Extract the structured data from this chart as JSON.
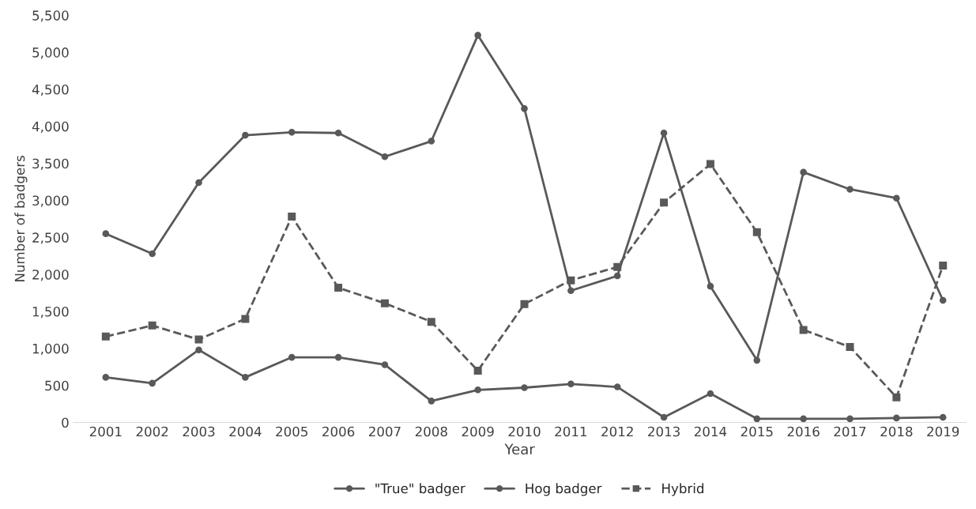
{
  "chart_data": {
    "type": "line",
    "xlabel": "Year",
    "ylabel": "Number of badgers",
    "categories": [
      "2001",
      "2002",
      "2003",
      "2004",
      "2005",
      "2006",
      "2007",
      "2008",
      "2009",
      "2010",
      "2011",
      "2012",
      "2013",
      "2014",
      "2015",
      "2016",
      "2017",
      "2018",
      "2019"
    ],
    "series": [
      {
        "name": "\"True\" badger",
        "color": "#595959",
        "marker": "circle",
        "line_style": "solid",
        "values": [
          2550,
          2280,
          3240,
          3880,
          3920,
          3910,
          3590,
          3800,
          5230,
          4240,
          1780,
          1980,
          3910,
          1840,
          840,
          3380,
          3150,
          3030,
          1650
        ]
      },
      {
        "name": "Hog badger",
        "color": "#595959",
        "marker": "circle",
        "line_style": "solid",
        "values": [
          610,
          530,
          980,
          610,
          880,
          880,
          780,
          290,
          440,
          470,
          520,
          480,
          70,
          390,
          50,
          50,
          50,
          60,
          70
        ]
      },
      {
        "name": "Hybrid",
        "color": "#595959",
        "marker": "square",
        "line_style": "dashed",
        "values": [
          1160,
          1310,
          1120,
          1400,
          2780,
          1820,
          1610,
          1360,
          700,
          1600,
          1920,
          2100,
          2970,
          3490,
          2570,
          1250,
          1020,
          340,
          2120
        ]
      }
    ],
    "ylim": [
      0,
      5500
    ],
    "yticks": [
      {
        "value": 0,
        "label": "0"
      },
      {
        "value": 500,
        "label": "500"
      },
      {
        "value": 1000,
        "label": "1,000"
      },
      {
        "value": 1500,
        "label": "1,500"
      },
      {
        "value": 2000,
        "label": "2,000"
      },
      {
        "value": 2500,
        "label": "2,500"
      },
      {
        "value": 3000,
        "label": "3,000"
      },
      {
        "value": 3500,
        "label": "3,500"
      },
      {
        "value": 4000,
        "label": "4,000"
      },
      {
        "value": 4500,
        "label": "4,500"
      },
      {
        "value": 5000,
        "label": "5,000"
      },
      {
        "value": 5500,
        "label": "5,500"
      }
    ],
    "grid": false,
    "legend": "bottom"
  }
}
